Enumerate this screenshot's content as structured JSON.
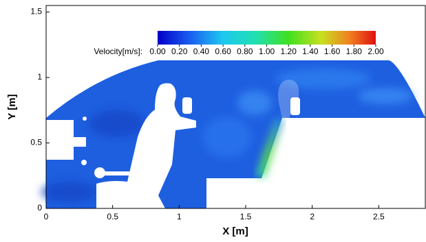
{
  "chart_data": {
    "type": "contour",
    "x_label": "X [m]",
    "y_label": "Y [m]",
    "xlim": [
      0,
      2.85
    ],
    "ylim": [
      0,
      1.55
    ],
    "xticks": [
      0,
      0.5,
      1,
      1.5,
      2,
      2.5
    ],
    "yticks": [
      0,
      0.5,
      1,
      1.5
    ],
    "colorbar": {
      "label": "Velocity[m/s]:",
      "lim": [
        0,
        2
      ],
      "ticks": [
        {
          "value": 0,
          "label": "0.00"
        },
        {
          "value": 0.2,
          "label": "0.20"
        },
        {
          "value": 0.4,
          "label": "0.40"
        },
        {
          "value": 0.6,
          "label": "0.60"
        },
        {
          "value": 0.8,
          "label": "0.80"
        },
        {
          "value": 1,
          "label": "1.00"
        },
        {
          "value": 1.2,
          "label": "1.20"
        },
        {
          "value": 1.4,
          "label": "1.40"
        },
        {
          "value": 1.6,
          "label": "1.60"
        },
        {
          "value": 1.8,
          "label": "1.80"
        },
        {
          "value": 2,
          "label": "2.00"
        }
      ]
    }
  }
}
